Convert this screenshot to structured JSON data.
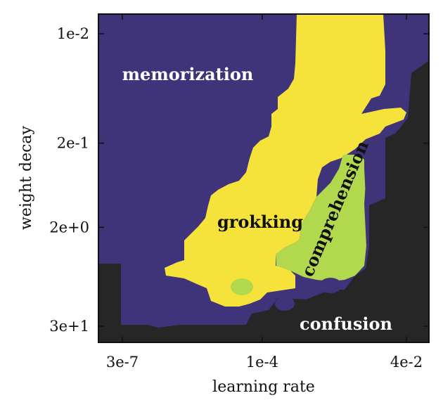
{
  "chart_data": {
    "type": "heatmap",
    "title": "",
    "xlabel": "learning rate",
    "ylabel": "weight decay",
    "x_scale": "log",
    "y_scale": "log",
    "x_ticks": [
      {
        "value": 3e-07,
        "label": "3e-7"
      },
      {
        "value": 0.0001,
        "label": "1e-4"
      },
      {
        "value": 0.04,
        "label": "4e-2"
      }
    ],
    "y_ticks": [
      {
        "value": 0.01,
        "label": "1e-2"
      },
      {
        "value": 0.2,
        "label": "2e-1"
      },
      {
        "value": 2,
        "label": "2e+0"
      },
      {
        "value": 30,
        "label": "3e+1"
      }
    ],
    "colors": {
      "memorization": "#3f3479",
      "grokking": "#f5e33b",
      "comprehension": "#b2d84e",
      "confusion": "#262626"
    },
    "regions": [
      {
        "name": "memorization",
        "label": "memorization",
        "label_color": "#ffffff"
      },
      {
        "name": "grokking",
        "label": "grokking",
        "label_color": "#111111"
      },
      {
        "name": "comprehension",
        "label": "comprehension",
        "label_color": "#111111"
      },
      {
        "name": "confusion",
        "label": "confusion",
        "label_color": "#ffffff"
      }
    ]
  }
}
